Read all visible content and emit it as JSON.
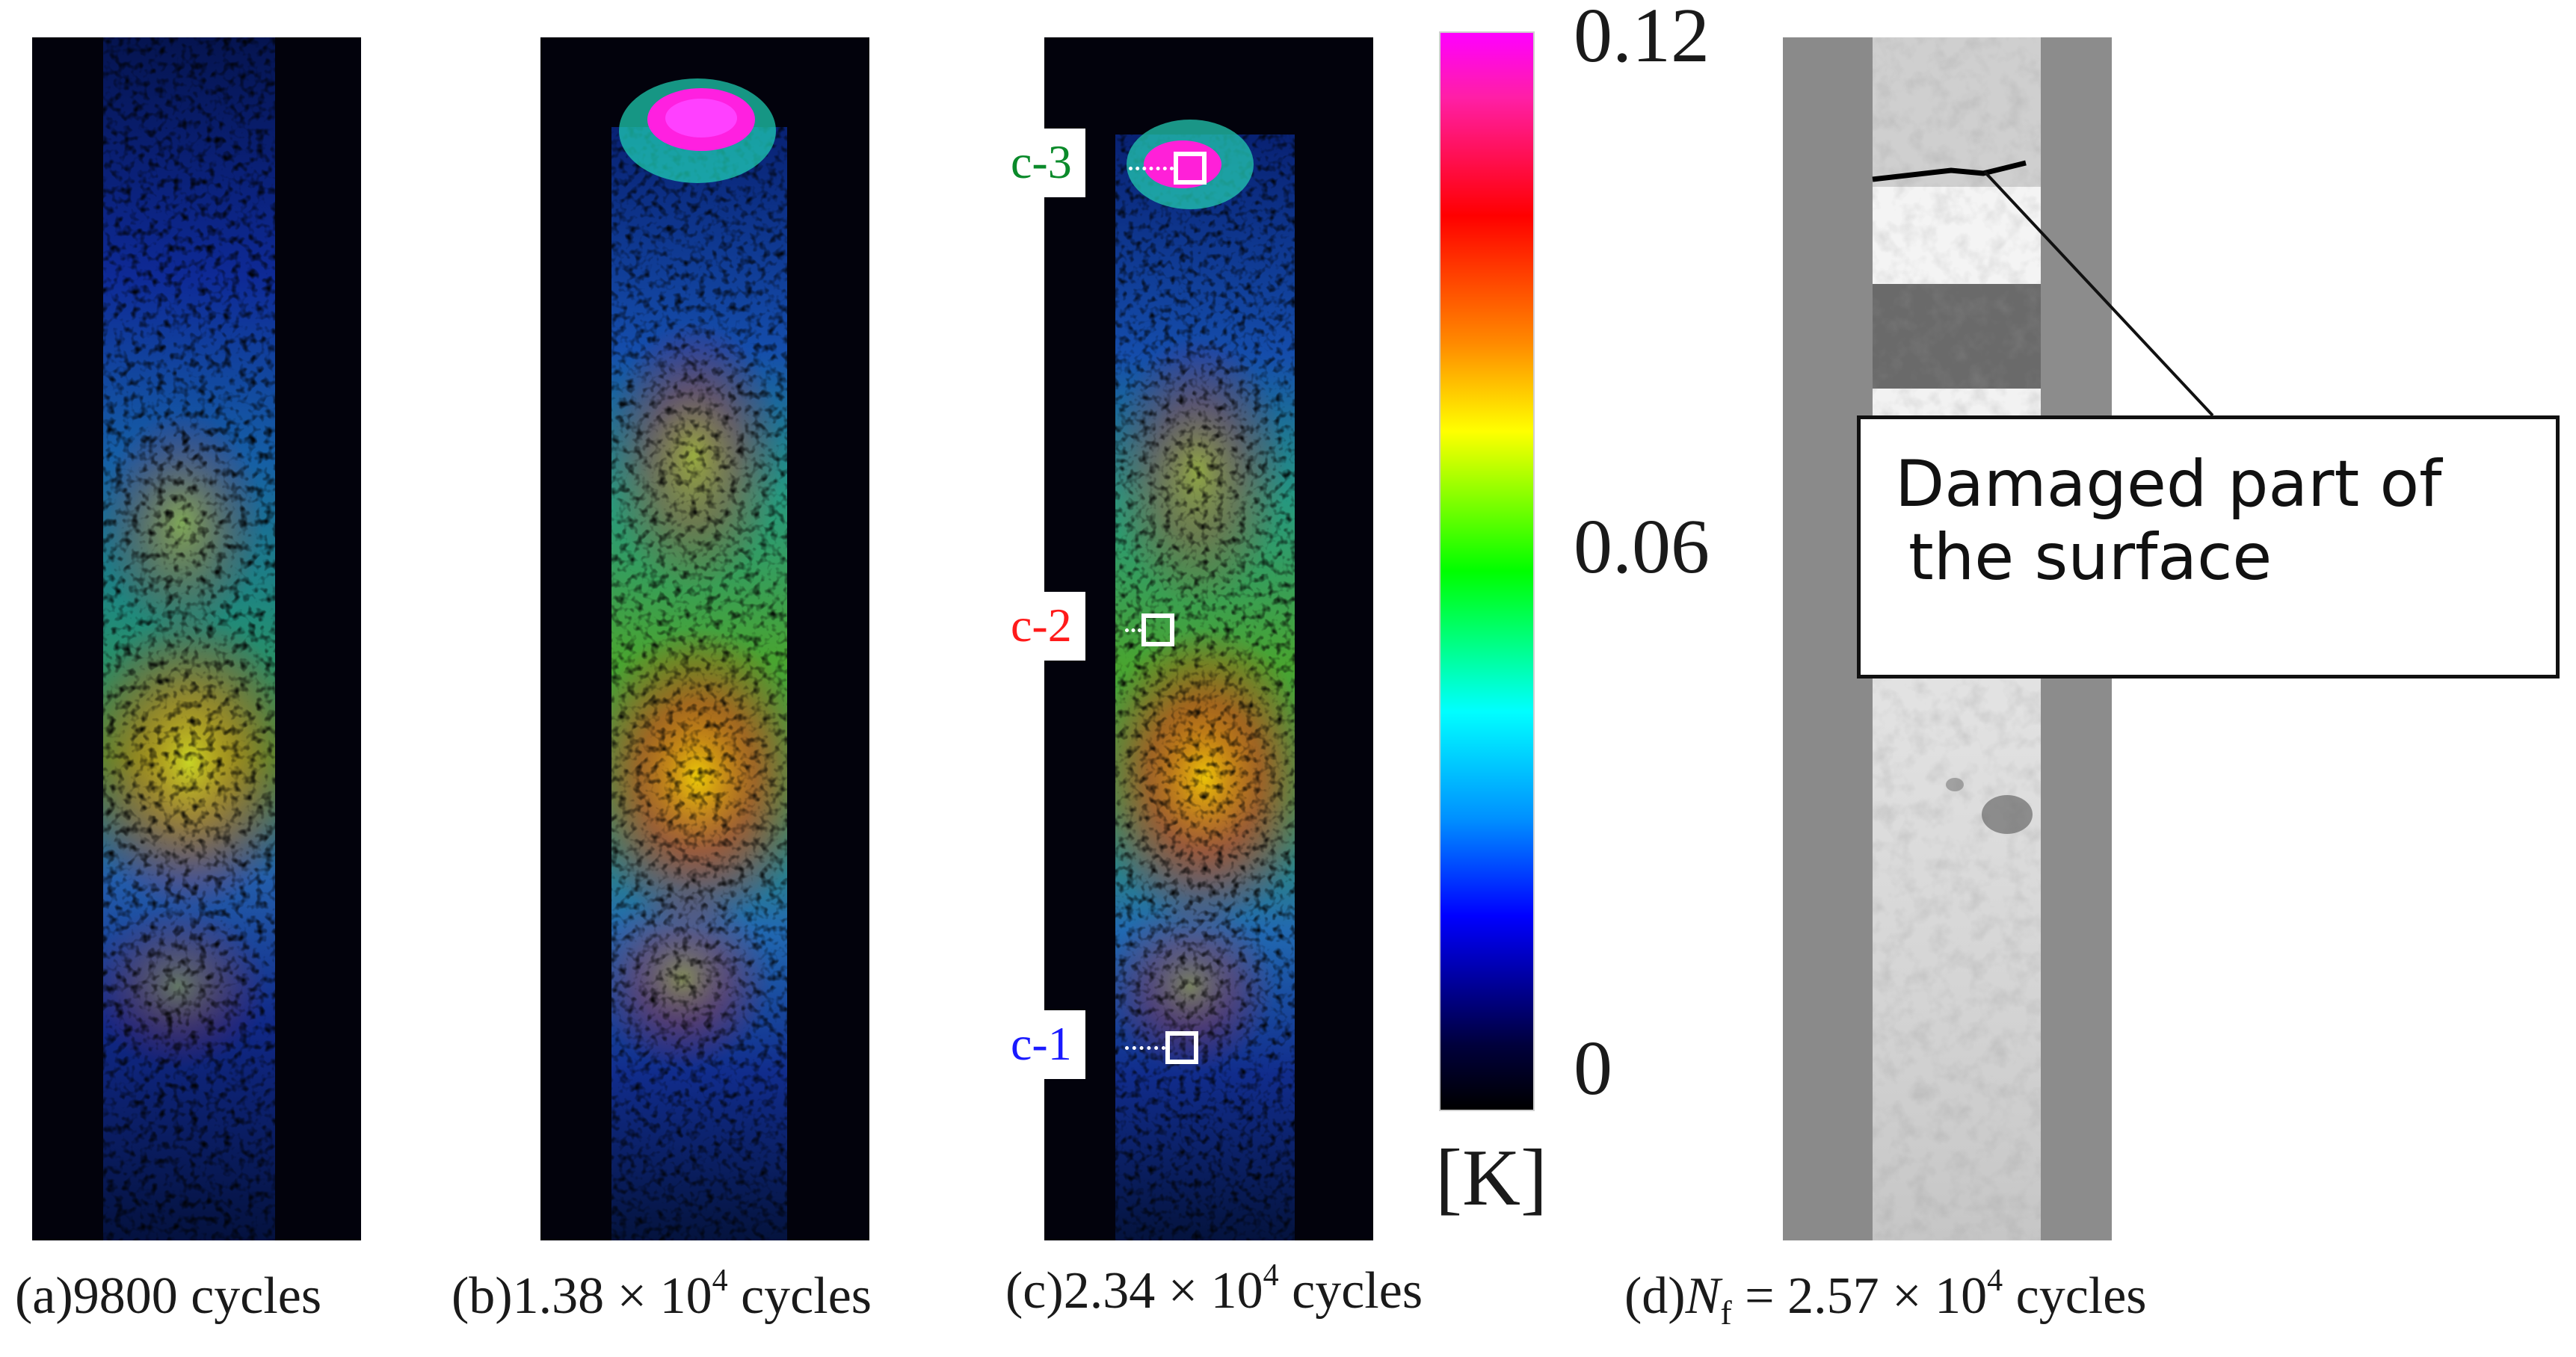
{
  "panels": {
    "a": {
      "caption": "(a)9800 cycles"
    },
    "b": {
      "caption_prefix": "(b)1.38 × 10",
      "caption_exp": "4",
      "caption_suffix": " cycles"
    },
    "c": {
      "caption_prefix": "(c)2.34 × 10",
      "caption_exp": "4",
      "caption_suffix": " cycles"
    },
    "d": {
      "caption_prefix": "(d)",
      "caption_symbol": "N",
      "caption_sub": "f",
      "caption_mid": " = 2.57 × 10",
      "caption_exp": "4",
      "caption_suffix": " cycles"
    }
  },
  "regions": [
    {
      "label": "c-3",
      "color": "#0a8a2a"
    },
    {
      "label": "c-2",
      "color": "#ff1a1a"
    },
    {
      "label": "c-1",
      "color": "#1a1aff"
    }
  ],
  "colorbar": {
    "max_label": "0.12",
    "mid_label": "0.06",
    "min_label": "0",
    "unit": "[K]"
  },
  "callout": {
    "line1": "Damaged part of",
    "line2": "the surface"
  }
}
